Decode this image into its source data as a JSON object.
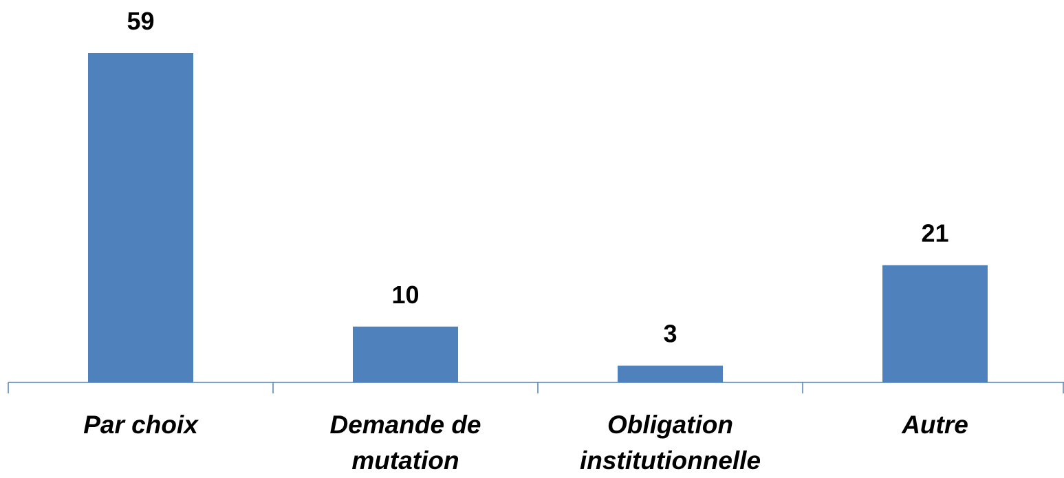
{
  "chart_data": {
    "type": "bar",
    "categories": [
      "Par choix",
      "Demande de mutation",
      "Obligation institutionnelle",
      "Autre"
    ],
    "values": [
      59,
      10,
      3,
      21
    ],
    "color": "#4f81bd"
  }
}
